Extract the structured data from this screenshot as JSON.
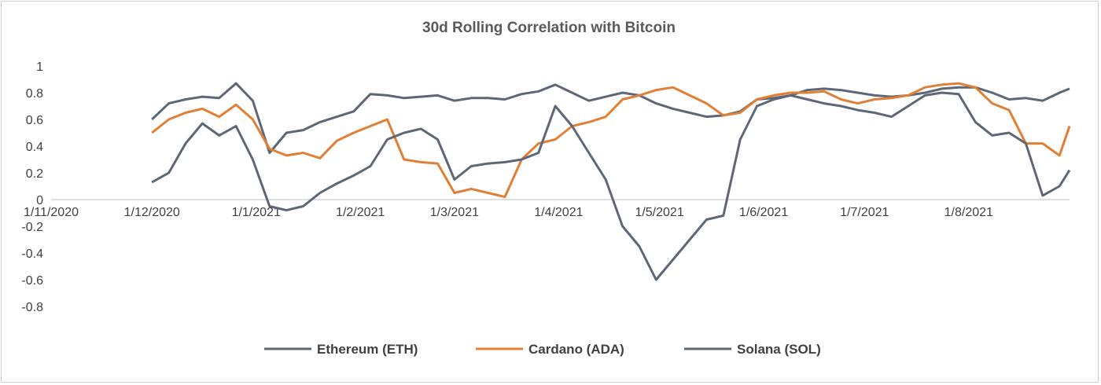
{
  "chart_data": {
    "type": "line",
    "title": "30d Rolling Correlation with Bitcoin",
    "xlabel": "",
    "ylabel": "",
    "x_start": "2020-12-01",
    "x_end": "2021-08-31",
    "xlim": [
      "2020-11-01",
      "2021-08-31"
    ],
    "ylim": [
      -0.8,
      1.0
    ],
    "y_ticks": [
      "1",
      "0.8",
      "0.6",
      "0.4",
      "0.2",
      "0",
      "-0.2",
      "-0.4",
      "-0.6",
      "-0.8"
    ],
    "x_ticks": [
      "1/11/2020",
      "1/12/2020",
      "1/1/2021",
      "1/2/2021",
      "1/3/2021",
      "1/4/2021",
      "1/5/2021",
      "1/6/2021",
      "1/7/2021",
      "1/8/2021"
    ],
    "grid": false,
    "legend_position": "bottom",
    "colors": {
      "eth": "#5d6776",
      "ada": "#e07f35",
      "sol": "#5d6776"
    },
    "series": [
      {
        "name": "Ethereum (ETH)",
        "x": [
          "2020-12-01",
          "2020-12-06",
          "2020-12-11",
          "2020-12-16",
          "2020-12-21",
          "2020-12-26",
          "2020-12-31",
          "2021-01-05",
          "2021-01-10",
          "2021-01-15",
          "2021-01-20",
          "2021-01-25",
          "2021-01-30",
          "2021-02-04",
          "2021-02-09",
          "2021-02-14",
          "2021-02-19",
          "2021-02-24",
          "2021-03-01",
          "2021-03-06",
          "2021-03-11",
          "2021-03-16",
          "2021-03-21",
          "2021-03-26",
          "2021-03-31",
          "2021-04-05",
          "2021-04-10",
          "2021-04-15",
          "2021-04-20",
          "2021-04-25",
          "2021-04-30",
          "2021-05-05",
          "2021-05-10",
          "2021-05-15",
          "2021-05-20",
          "2021-05-25",
          "2021-05-30",
          "2021-06-04",
          "2021-06-09",
          "2021-06-14",
          "2021-06-19",
          "2021-06-24",
          "2021-06-29",
          "2021-07-04",
          "2021-07-09",
          "2021-07-14",
          "2021-07-19",
          "2021-07-24",
          "2021-07-29",
          "2021-08-03",
          "2021-08-08",
          "2021-08-13",
          "2021-08-18",
          "2021-08-23",
          "2021-08-28",
          "2021-08-31"
        ],
        "values": [
          0.6,
          0.72,
          0.75,
          0.77,
          0.76,
          0.87,
          0.74,
          0.35,
          0.5,
          0.52,
          0.58,
          0.62,
          0.66,
          0.79,
          0.78,
          0.76,
          0.77,
          0.78,
          0.74,
          0.76,
          0.76,
          0.75,
          0.79,
          0.81,
          0.86,
          0.8,
          0.74,
          0.77,
          0.8,
          0.78,
          0.72,
          0.68,
          0.65,
          0.62,
          0.63,
          0.66,
          0.75,
          0.76,
          0.78,
          0.82,
          0.83,
          0.82,
          0.8,
          0.78,
          0.77,
          0.78,
          0.8,
          0.83,
          0.84,
          0.84,
          0.8,
          0.75,
          0.76,
          0.74,
          0.8,
          0.83
        ]
      },
      {
        "name": "Cardano (ADA)",
        "x": [
          "2020-12-01",
          "2020-12-06",
          "2020-12-11",
          "2020-12-16",
          "2020-12-21",
          "2020-12-26",
          "2020-12-31",
          "2021-01-05",
          "2021-01-10",
          "2021-01-15",
          "2021-01-20",
          "2021-01-25",
          "2021-01-30",
          "2021-02-04",
          "2021-02-09",
          "2021-02-14",
          "2021-02-19",
          "2021-02-24",
          "2021-03-01",
          "2021-03-06",
          "2021-03-11",
          "2021-03-16",
          "2021-03-21",
          "2021-03-26",
          "2021-03-31",
          "2021-04-05",
          "2021-04-10",
          "2021-04-15",
          "2021-04-20",
          "2021-04-25",
          "2021-04-30",
          "2021-05-05",
          "2021-05-10",
          "2021-05-15",
          "2021-05-20",
          "2021-05-25",
          "2021-05-30",
          "2021-06-04",
          "2021-06-09",
          "2021-06-14",
          "2021-06-19",
          "2021-06-24",
          "2021-06-29",
          "2021-07-04",
          "2021-07-09",
          "2021-07-14",
          "2021-07-19",
          "2021-07-24",
          "2021-07-29",
          "2021-08-03",
          "2021-08-08",
          "2021-08-13",
          "2021-08-18",
          "2021-08-23",
          "2021-08-28",
          "2021-08-31"
        ],
        "values": [
          0.5,
          0.6,
          0.65,
          0.68,
          0.62,
          0.71,
          0.6,
          0.38,
          0.33,
          0.35,
          0.31,
          0.44,
          0.5,
          0.55,
          0.6,
          0.3,
          0.28,
          0.27,
          0.05,
          0.08,
          0.05,
          0.02,
          0.3,
          0.42,
          0.45,
          0.55,
          0.58,
          0.62,
          0.75,
          0.78,
          0.82,
          0.84,
          0.78,
          0.72,
          0.63,
          0.65,
          0.75,
          0.78,
          0.8,
          0.8,
          0.81,
          0.75,
          0.72,
          0.75,
          0.76,
          0.78,
          0.84,
          0.86,
          0.87,
          0.84,
          0.72,
          0.67,
          0.42,
          0.42,
          0.33,
          0.55
        ]
      },
      {
        "name": "Solana (SOL)",
        "x": [
          "2020-12-01",
          "2020-12-06",
          "2020-12-11",
          "2020-12-16",
          "2020-12-21",
          "2020-12-26",
          "2020-12-31",
          "2021-01-05",
          "2021-01-10",
          "2021-01-15",
          "2021-01-20",
          "2021-01-25",
          "2021-01-30",
          "2021-02-04",
          "2021-02-09",
          "2021-02-14",
          "2021-02-19",
          "2021-02-24",
          "2021-03-01",
          "2021-03-06",
          "2021-03-11",
          "2021-03-16",
          "2021-03-21",
          "2021-03-26",
          "2021-03-31",
          "2021-04-05",
          "2021-04-10",
          "2021-04-15",
          "2021-04-20",
          "2021-04-25",
          "2021-04-30",
          "2021-05-05",
          "2021-05-10",
          "2021-05-15",
          "2021-05-20",
          "2021-05-25",
          "2021-05-30",
          "2021-06-04",
          "2021-06-09",
          "2021-06-14",
          "2021-06-19",
          "2021-06-24",
          "2021-06-29",
          "2021-07-04",
          "2021-07-09",
          "2021-07-14",
          "2021-07-19",
          "2021-07-24",
          "2021-07-29",
          "2021-08-03",
          "2021-08-08",
          "2021-08-13",
          "2021-08-18",
          "2021-08-23",
          "2021-08-28",
          "2021-08-31"
        ],
        "values": [
          0.13,
          0.2,
          0.42,
          0.57,
          0.48,
          0.55,
          0.3,
          -0.05,
          -0.08,
          -0.05,
          0.05,
          0.12,
          0.18,
          0.25,
          0.45,
          0.5,
          0.53,
          0.45,
          0.15,
          0.25,
          0.27,
          0.28,
          0.3,
          0.35,
          0.7,
          0.55,
          0.35,
          0.15,
          -0.2,
          -0.35,
          -0.6,
          -0.45,
          -0.3,
          -0.15,
          -0.12,
          0.45,
          0.7,
          0.75,
          0.78,
          0.75,
          0.72,
          0.7,
          0.67,
          0.65,
          0.62,
          0.7,
          0.78,
          0.8,
          0.79,
          0.58,
          0.48,
          0.5,
          0.42,
          0.03,
          0.1,
          0.22
        ]
      }
    ]
  }
}
